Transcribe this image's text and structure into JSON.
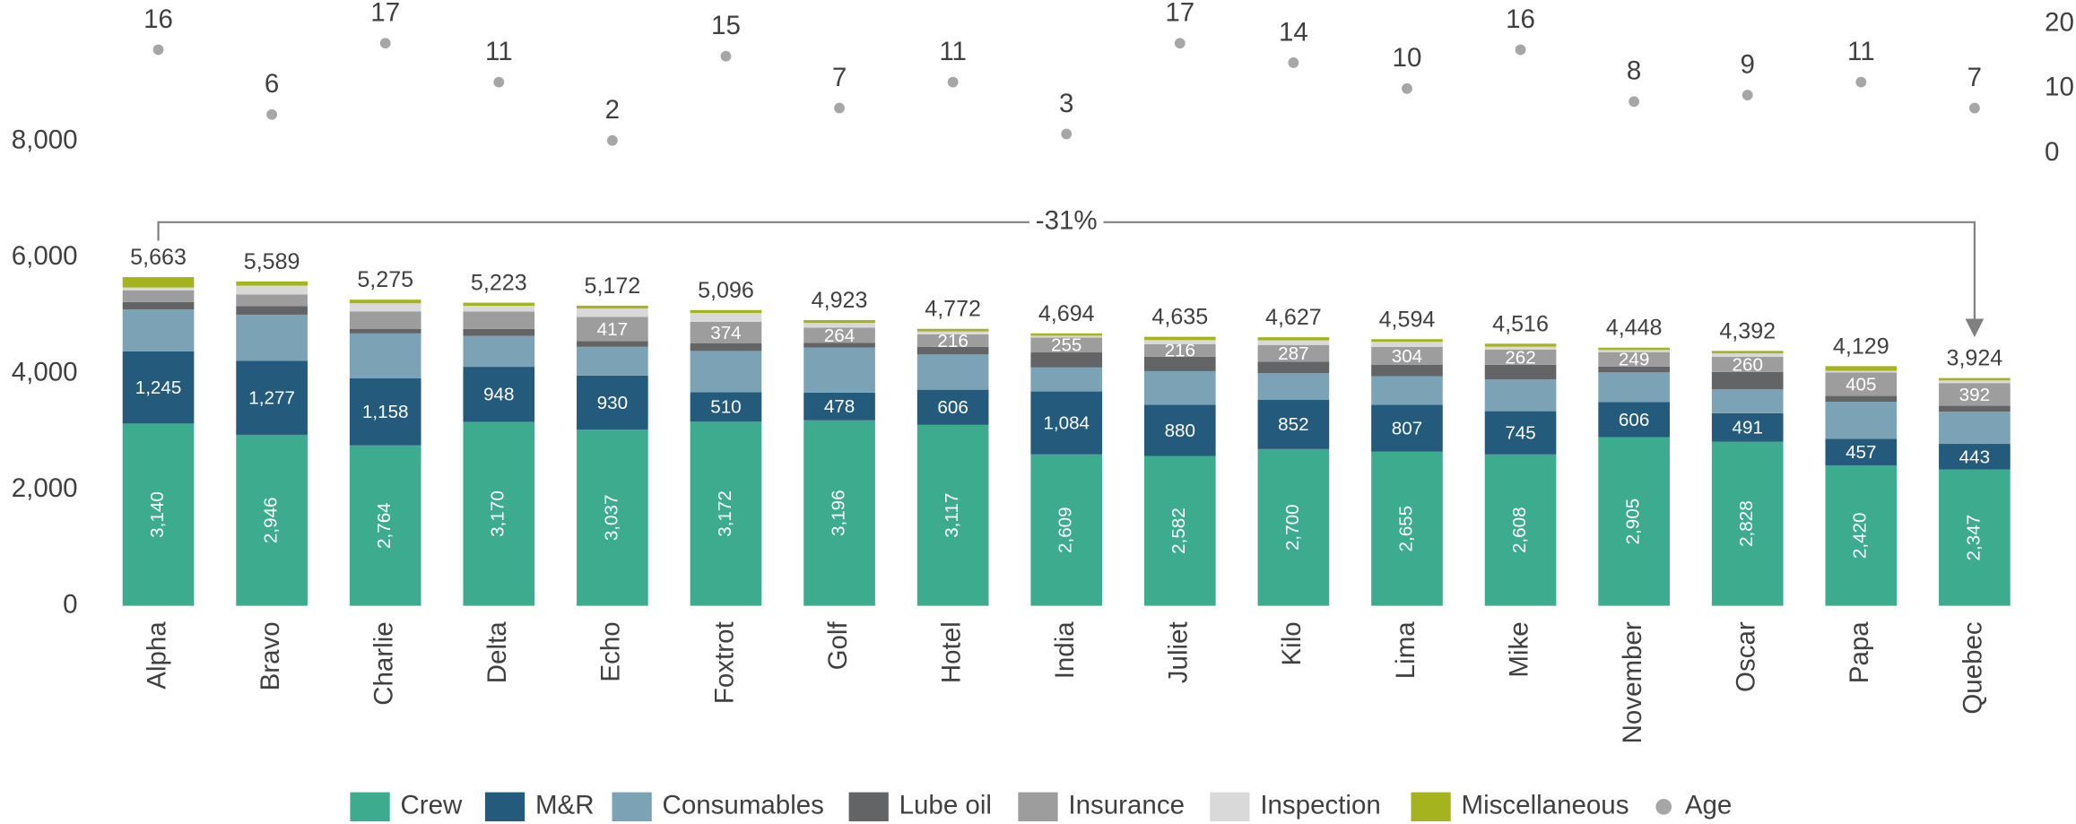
{
  "chart_data": {
    "type": "bar",
    "stacked": true,
    "categories": [
      "Alpha",
      "Bravo",
      "Charlie",
      "Delta",
      "Echo",
      "Foxtrot",
      "Golf",
      "Hotel",
      "India",
      "Juliet",
      "Kilo",
      "Lima",
      "Mike",
      "November",
      "Oscar",
      "Papa",
      "Quebec"
    ],
    "series": [
      {
        "name": "Crew",
        "color": "#3dab8e",
        "values": [
          3140,
          2946,
          2764,
          3170,
          3037,
          3172,
          3196,
          3117,
          2609,
          2582,
          2700,
          2655,
          2608,
          2905,
          2828,
          2420,
          2347
        ],
        "value_labels": [
          "3,140",
          "2,946",
          "2,764",
          "3,170",
          "3,037",
          "3,172",
          "3,196",
          "3,117",
          "2,609",
          "2,582",
          "2,700",
          "2,655",
          "2,608",
          "2,905",
          "2,828",
          "2,420",
          "2,347"
        ]
      },
      {
        "name": "M&R",
        "color": "#245a7c",
        "values": [
          1245,
          1277,
          1158,
          948,
          930,
          510,
          478,
          606,
          1084,
          880,
          852,
          807,
          745,
          606,
          491,
          457,
          443
        ],
        "value_labels": [
          "1,245",
          "1,277",
          "1,158",
          "948",
          "930",
          "510",
          "478",
          "606",
          "1,084",
          "880",
          "852",
          "807",
          "745",
          "606",
          "491",
          "457",
          "443"
        ]
      },
      {
        "name": "Consumables",
        "color": "#7ba3b5",
        "values": [
          720,
          793,
          771,
          532,
          495,
          709,
          775,
          608,
          413,
          581,
          455,
          493,
          550,
          511,
          410,
          639,
          556
        ]
      },
      {
        "name": "Lube oil",
        "color": "#636466",
        "values": [
          130,
          150,
          80,
          120,
          100,
          130,
          80,
          130,
          260,
          250,
          200,
          200,
          250,
          100,
          300,
          100,
          100
        ]
      },
      {
        "name": "Insurance",
        "color": "#9d9d9d",
        "values": [
          200,
          200,
          300,
          300,
          417,
          374,
          264,
          216,
          255,
          216,
          287,
          304,
          262,
          249,
          260,
          405,
          392
        ],
        "value_labels": [
          null,
          null,
          null,
          null,
          "417",
          "374",
          "264",
          "216",
          "255",
          "216",
          "287",
          "304",
          "262",
          "249",
          "260",
          "405",
          "392"
        ]
      },
      {
        "name": "Inspection",
        "color": "#d9d9d9",
        "values": [
          50,
          150,
          140,
          100,
          143,
          150,
          80,
          50,
          33,
          70,
          80,
          90,
          50,
          37,
          60,
          28,
          46
        ]
      },
      {
        "name": "Miscellaneous",
        "color": "#a5b41e",
        "values": [
          178,
          73,
          62,
          53,
          50,
          51,
          50,
          45,
          40,
          56,
          53,
          45,
          51,
          40,
          43,
          80,
          40
        ]
      },
      {
        "name": "Age",
        "color": "#a6a6a6",
        "axis": "y2",
        "values": [
          16,
          6,
          17,
          11,
          2,
          15,
          7,
          11,
          3,
          17,
          14,
          10,
          16,
          8,
          9,
          11,
          7
        ]
      }
    ],
    "totals": [
      5663,
      5589,
      5275,
      5223,
      5172,
      5096,
      4923,
      4772,
      4694,
      4635,
      4627,
      4594,
      4516,
      4448,
      4392,
      4129,
      3924
    ],
    "total_labels": [
      "5,663",
      "5,589",
      "5,275",
      "5,223",
      "5,172",
      "5,096",
      "4,923",
      "4,772",
      "4,694",
      "4,635",
      "4,627",
      "4,594",
      "4,516",
      "4,448",
      "4,392",
      "4,129",
      "3,924"
    ],
    "annotation": "-31%",
    "ylim": [
      0,
      8000
    ],
    "yticks": [
      0,
      {
        "value": 2000,
        "label": "2,000"
      },
      {
        "value": 4000,
        "label": "4,000"
      },
      {
        "value": 6000,
        "label": "6,000"
      },
      {
        "value": 8000,
        "label": "8,000"
      }
    ],
    "y2lim": [
      0,
      20
    ],
    "y2ticks": [
      0,
      10,
      20
    ],
    "legend": "bottom",
    "grid": false
  }
}
